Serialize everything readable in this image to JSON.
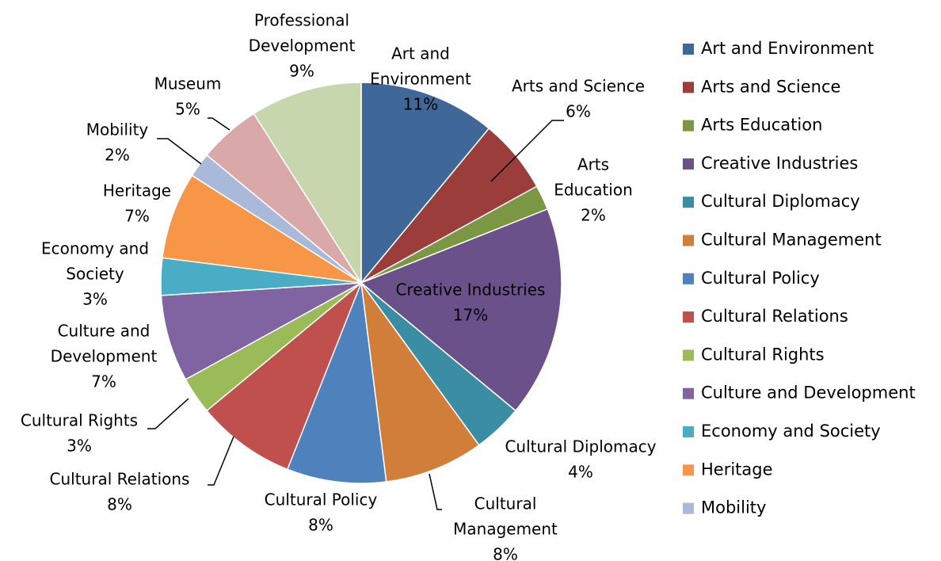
{
  "chart_data": {
    "type": "pie",
    "title": "",
    "legend_position": "right",
    "data_label_format": "category name and percentage",
    "slices": [
      {
        "label": "Art and Environment",
        "label_lines": [
          "Art and",
          "Environment",
          "11%"
        ],
        "value": 11,
        "color": "#3F6797"
      },
      {
        "label": "Arts and Science",
        "label_lines": [
          "Arts and Science",
          "6%"
        ],
        "value": 6,
        "color": "#9B3E3B"
      },
      {
        "label": "Arts Education",
        "label_lines": [
          "Arts",
          "Education",
          "2%"
        ],
        "value": 2,
        "color": "#7B9743"
      },
      {
        "label": "Creative Industries",
        "label_lines": [
          "Creative Industries",
          "17%"
        ],
        "value": 17,
        "color": "#6A5189"
      },
      {
        "label": "Cultural Diplomacy",
        "label_lines": [
          "Cultural Diplomacy",
          "4%"
        ],
        "value": 4,
        "color": "#3A8DA2"
      },
      {
        "label": "Cultural Management",
        "label_lines": [
          "Cultural",
          "Management",
          "8%"
        ],
        "value": 8,
        "color": "#D07E3A"
      },
      {
        "label": "Cultural Policy",
        "label_lines": [
          "Cultural Policy",
          "8%"
        ],
        "value": 8,
        "color": "#4F81BD"
      },
      {
        "label": "Cultural Relations",
        "label_lines": [
          "Cultural Relations",
          "8%"
        ],
        "value": 8,
        "color": "#C0504D"
      },
      {
        "label": "Cultural Rights",
        "label_lines": [
          "Cultural Rights",
          "3%"
        ],
        "value": 3,
        "color": "#9BBB59"
      },
      {
        "label": "Culture and Development",
        "label_lines": [
          "Culture and",
          "Development",
          "7%"
        ],
        "value": 7,
        "color": "#8064A2"
      },
      {
        "label": "Economy and Society",
        "label_lines": [
          "Economy and",
          "Society",
          "3%"
        ],
        "value": 3,
        "color": "#4BACC6"
      },
      {
        "label": "Heritage",
        "label_lines": [
          "Heritage",
          "7%"
        ],
        "value": 7,
        "color": "#F79646"
      },
      {
        "label": "Mobility",
        "label_lines": [
          "Mobility",
          "2%"
        ],
        "value": 2,
        "color": "#A9B9D9"
      },
      {
        "label": "Museum",
        "label_lines": [
          "Museum",
          "5%"
        ],
        "value": 5,
        "color": "#D9A9AA"
      },
      {
        "label": "Professional Development",
        "label_lines": [
          "Professional",
          "Development",
          "9%"
        ],
        "value": 9,
        "color": "#C7D6AD"
      }
    ],
    "legend": [
      "Art and Environment",
      "Arts and Science",
      "Arts Education",
      "Creative Industries",
      "Cultural Diplomacy",
      "Cultural Management",
      "Cultural Policy",
      "Cultural Relations",
      "Cultural Rights",
      "Culture and Development",
      "Economy and Society",
      "Heritage",
      "Mobility"
    ]
  }
}
